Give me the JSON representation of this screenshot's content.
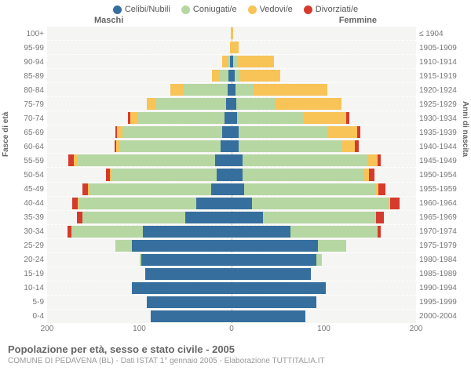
{
  "legend": [
    {
      "label": "Celibi/Nubili",
      "color": "#366f9e"
    },
    {
      "label": "Coniugati/e",
      "color": "#b6d7a2"
    },
    {
      "label": "Vedovi/e",
      "color": "#f8c357"
    },
    {
      "label": "Divorziati/e",
      "color": "#d63a2c"
    }
  ],
  "side_titles": {
    "male": "Maschi",
    "female": "Femmine"
  },
  "axis_titles": {
    "left": "Fasce di età",
    "right": "Anni di nascita"
  },
  "colors": {
    "single": "#366f9e",
    "married": "#b6d7a2",
    "widowed": "#f8c357",
    "divorced": "#d63a2c",
    "background": "#f5f5f3",
    "grid": "#ffffff",
    "center": "#bbbbbb"
  },
  "x_axis": {
    "max": 200,
    "ticks": [
      {
        "pos": 0,
        "label": "200"
      },
      {
        "pos": 25,
        "label": "100"
      },
      {
        "pos": 50,
        "label": "0"
      },
      {
        "pos": 75,
        "label": "100"
      },
      {
        "pos": 100,
        "label": "200"
      }
    ]
  },
  "rows": [
    {
      "age": "100+",
      "birth": "≤ 1904",
      "m": [
        0,
        0,
        1,
        0
      ],
      "f": [
        0,
        0,
        2,
        0
      ]
    },
    {
      "age": "95-99",
      "birth": "1905-1909",
      "m": [
        0,
        0,
        2,
        0
      ],
      "f": [
        0,
        0,
        8,
        0
      ]
    },
    {
      "age": "90-94",
      "birth": "1910-1914",
      "m": [
        2,
        2,
        6,
        0
      ],
      "f": [
        2,
        4,
        40,
        0
      ]
    },
    {
      "age": "85-89",
      "birth": "1915-1919",
      "m": [
        3,
        10,
        8,
        0
      ],
      "f": [
        3,
        6,
        44,
        0
      ]
    },
    {
      "age": "80-84",
      "birth": "1920-1924",
      "m": [
        4,
        48,
        14,
        0
      ],
      "f": [
        4,
        20,
        80,
        0
      ]
    },
    {
      "age": "75-79",
      "birth": "1925-1929",
      "m": [
        6,
        76,
        10,
        0
      ],
      "f": [
        5,
        42,
        72,
        0
      ]
    },
    {
      "age": "70-74",
      "birth": "1930-1934",
      "m": [
        8,
        94,
        8,
        2
      ],
      "f": [
        6,
        72,
        46,
        4
      ]
    },
    {
      "age": "65-69",
      "birth": "1935-1939",
      "m": [
        10,
        108,
        6,
        2
      ],
      "f": [
        8,
        96,
        32,
        4
      ]
    },
    {
      "age": "60-64",
      "birth": "1940-1944",
      "m": [
        12,
        110,
        3,
        2
      ],
      "f": [
        8,
        112,
        14,
        4
      ]
    },
    {
      "age": "55-59",
      "birth": "1945-1949",
      "m": [
        18,
        150,
        3,
        6
      ],
      "f": [
        12,
        136,
        10,
        4
      ]
    },
    {
      "age": "50-54",
      "birth": "1950-1954",
      "m": [
        16,
        114,
        2,
        4
      ],
      "f": [
        12,
        132,
        5,
        6
      ]
    },
    {
      "age": "45-49",
      "birth": "1955-1959",
      "m": [
        22,
        132,
        2,
        6
      ],
      "f": [
        14,
        142,
        3,
        8
      ]
    },
    {
      "age": "40-44",
      "birth": "1960-1964",
      "m": [
        38,
        128,
        1,
        6
      ],
      "f": [
        22,
        148,
        2,
        10
      ]
    },
    {
      "age": "35-39",
      "birth": "1965-1969",
      "m": [
        50,
        112,
        0,
        6
      ],
      "f": [
        34,
        122,
        1,
        8
      ]
    },
    {
      "age": "30-34",
      "birth": "1970-1974",
      "m": [
        96,
        78,
        0,
        4
      ],
      "f": [
        64,
        94,
        0,
        4
      ]
    },
    {
      "age": "25-29",
      "birth": "1975-1979",
      "m": [
        108,
        18,
        0,
        0
      ],
      "f": [
        94,
        30,
        0,
        0
      ]
    },
    {
      "age": "20-24",
      "birth": "1980-1984",
      "m": [
        98,
        2,
        0,
        0
      ],
      "f": [
        92,
        6,
        0,
        0
      ]
    },
    {
      "age": "15-19",
      "birth": "1985-1989",
      "m": [
        94,
        0,
        0,
        0
      ],
      "f": [
        86,
        0,
        0,
        0
      ]
    },
    {
      "age": "10-14",
      "birth": "1990-1994",
      "m": [
        108,
        0,
        0,
        0
      ],
      "f": [
        102,
        0,
        0,
        0
      ]
    },
    {
      "age": "5-9",
      "birth": "1995-1999",
      "m": [
        92,
        0,
        0,
        0
      ],
      "f": [
        92,
        0,
        0,
        0
      ]
    },
    {
      "age": "0-4",
      "birth": "2000-2004",
      "m": [
        88,
        0,
        0,
        0
      ],
      "f": [
        80,
        0,
        0,
        0
      ]
    }
  ],
  "footer": {
    "title": "Popolazione per età, sesso e stato civile - 2005",
    "subtitle": "COMUNE DI PEDAVENA (BL) - Dati ISTAT 1° gennaio 2005 - Elaborazione TUTTITALIA.IT"
  }
}
